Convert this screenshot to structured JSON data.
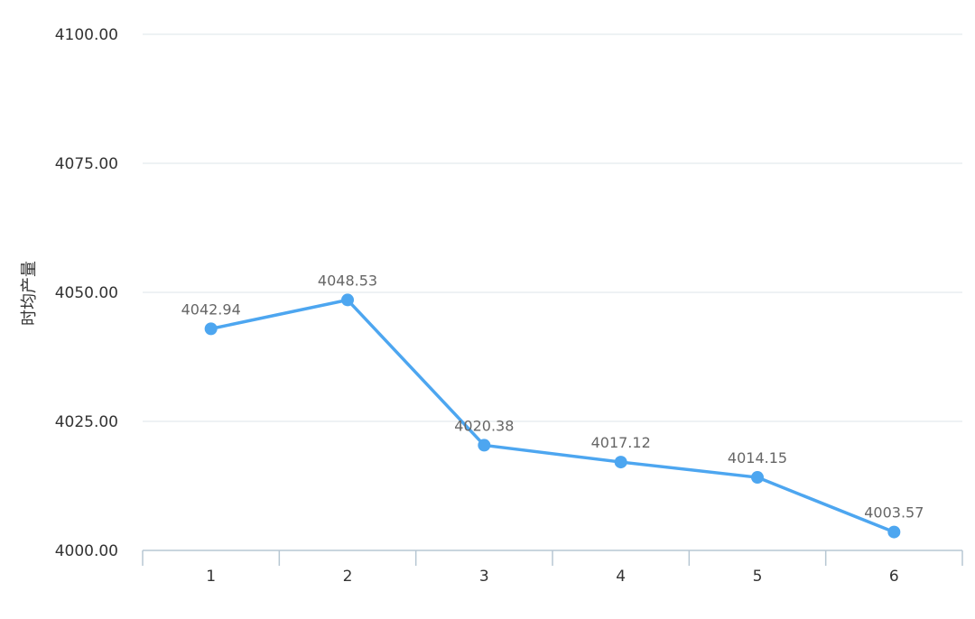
{
  "chart_data": {
    "type": "line",
    "title": "",
    "xlabel": "",
    "ylabel": "时均产量",
    "categories": [
      "1",
      "2",
      "3",
      "4",
      "5",
      "6"
    ],
    "series": [
      {
        "values": [
          4042.94,
          4048.53,
          4020.38,
          4017.12,
          4014.15,
          4003.57
        ],
        "data_labels": [
          "4042.94",
          "4048.53",
          "4020.38",
          "4017.12",
          "4014.15",
          "4003.57"
        ]
      }
    ],
    "yticks": [
      "4000.00",
      "4025.00",
      "4050.00",
      "4075.00",
      "4100.00"
    ],
    "ylim": [
      4000,
      4100
    ],
    "grid": true,
    "legend": "none",
    "colors": {
      "line": "#4da6f0",
      "grid": "#dde6ea",
      "axis": "#b7c7d3"
    }
  }
}
